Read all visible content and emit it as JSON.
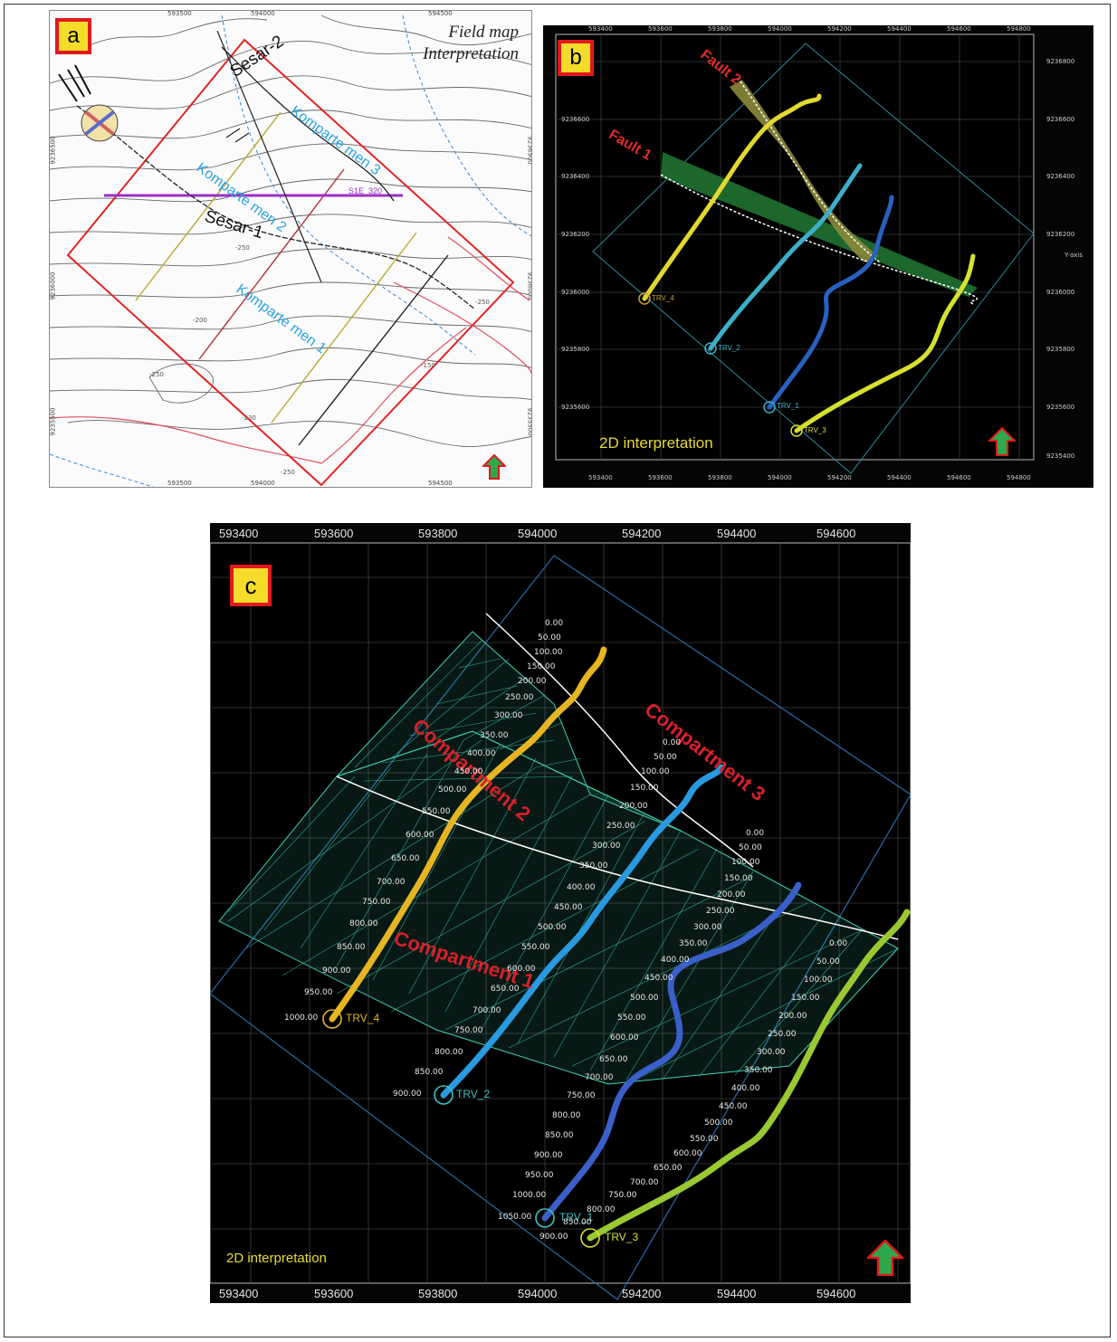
{
  "panel_a": {
    "badge": "a",
    "title_line1": "Field map",
    "title_line2": "Interpretation",
    "x_ticks": [
      "593500",
      "594000",
      "594500"
    ],
    "y_ticks": [
      "9236500",
      "9236000",
      "9235500"
    ],
    "faults": [
      "Sesar-2",
      "Sesar-1"
    ],
    "compartments": [
      "Komparte men 3",
      "Komparte men 2",
      "Komparte men 1"
    ],
    "line_label": "S1E_320",
    "contours": [
      "-250",
      "-200",
      "-250",
      "-150",
      "-230",
      "-250",
      "-250"
    ]
  },
  "panel_b": {
    "badge": "b",
    "x_ticks": [
      "593400",
      "593600",
      "593800",
      "594000",
      "594200",
      "594400",
      "594600",
      "594800"
    ],
    "y_ticks": [
      "9236800",
      "9236600",
      "9236400",
      "9236200",
      "9236000",
      "9235800",
      "9235600",
      "9235400"
    ],
    "axis_label": "Y-axis",
    "faults": [
      "Fault 2",
      "Fault 1"
    ],
    "wells": [
      "TRV_4",
      "TRV_2",
      "TRV_1",
      "TRV_3"
    ],
    "caption": "2D interpretation"
  },
  "panel_c": {
    "badge": "c",
    "x_ticks": [
      "593400",
      "593600",
      "593800",
      "594000",
      "594200",
      "594400",
      "594600"
    ],
    "compartments": [
      "Compartment 2",
      "Compartment 3",
      "Compartment 1"
    ],
    "wells": [
      "TRV_4",
      "TRV_2",
      "TRV_1",
      "TRV_3"
    ],
    "caption": "2D interpretation",
    "depth_labels": {
      "trv4": [
        "1000.00",
        "950.00",
        "900.00",
        "850.00",
        "800.00",
        "750.00",
        "700.00",
        "650.00",
        "600.00",
        "550.00",
        "500.00",
        "450.00",
        "400.00",
        "350.00",
        "300.00",
        "250.00",
        "200.00",
        "150.00",
        "100.00",
        "50.00",
        "0.00"
      ],
      "trv2": [
        "900.00",
        "850.00",
        "800.00",
        "750.00",
        "700.00",
        "650.00",
        "600.00",
        "550.00",
        "500.00",
        "450.00",
        "400.00",
        "350.00",
        "300.00",
        "250.00",
        "200.00",
        "150.00",
        "100.00",
        "50.00",
        "0.00"
      ],
      "trv1": [
        "1050.00",
        "1000.00",
        "950.00",
        "900.00",
        "850.00",
        "800.00",
        "750.00",
        "700.00",
        "650.00",
        "600.00",
        "550.00",
        "500.00",
        "450.00",
        "400.00",
        "350.00",
        "300.00",
        "250.00",
        "200.00",
        "150.00",
        "100.00",
        "50.00",
        "0.00"
      ],
      "trv3": [
        "900.00",
        "850.00",
        "800.00",
        "750.00",
        "700.00",
        "650.00",
        "600.00",
        "550.00",
        "500.00",
        "450.00",
        "400.00",
        "350.00",
        "300.00",
        "250.00",
        "200.00",
        "150.00",
        "100.00",
        "50.00",
        "0.00"
      ]
    }
  },
  "colors": {
    "badge_fill": "#f5dc2a",
    "badge_border": "#e0191c",
    "compartment_text": "#d8202a",
    "komparte_text": "#2aa4dc",
    "survey_box": "#e02424",
    "grid_mesh": "#41d0b0",
    "caption": "#e7dc2f",
    "fault_line": "#ffffff",
    "fault_1_fill": "#1f6b2e",
    "fault_2_fill": "#8c8a3a"
  },
  "icons": [
    "north-arrow-icon",
    "well-marker-icon",
    "fault-symbol-icon"
  ]
}
